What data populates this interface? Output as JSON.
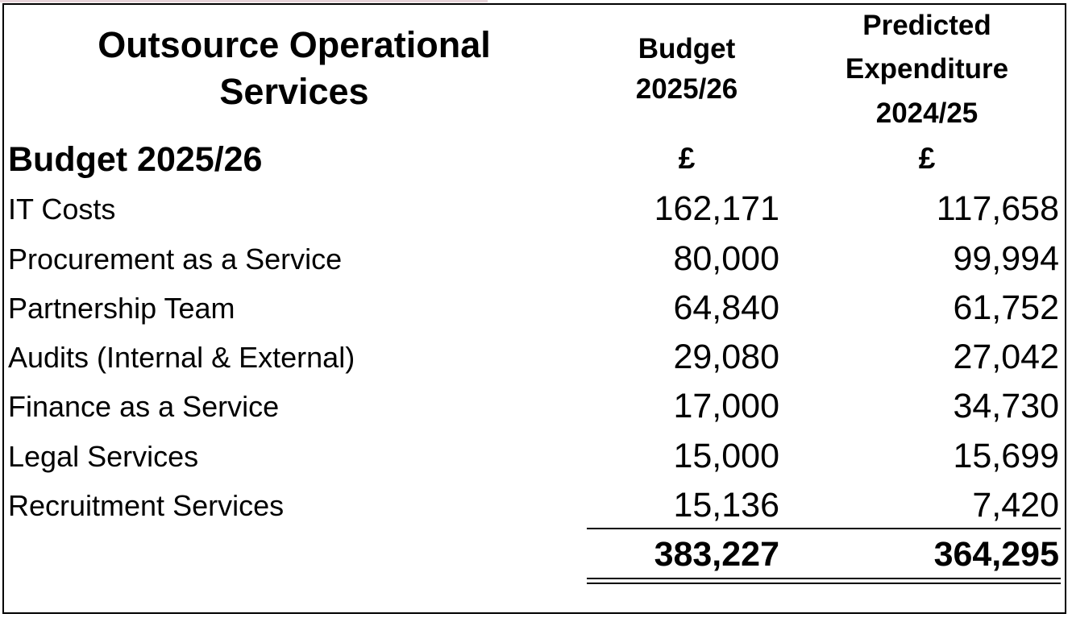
{
  "title_lines": [
    "Outsource Operational",
    "Services"
  ],
  "section_title": "Budget 2025/26",
  "columns": {
    "budget": {
      "lines": [
        "Budget",
        "2025/26"
      ],
      "currency": "£"
    },
    "predicted": {
      "lines": [
        "Predicted",
        "Expenditure",
        "2024/25"
      ],
      "currency": "£"
    }
  },
  "rows": [
    {
      "label": "IT Costs",
      "budget": "162,171",
      "predicted": "117,658"
    },
    {
      "label": "Procurement as a Service",
      "budget": "80,000",
      "predicted": "99,994"
    },
    {
      "label": "Partnership Team",
      "budget": "64,840",
      "predicted": "61,752"
    },
    {
      "label": "Audits (Internal & External)",
      "budget": "29,080",
      "predicted": "27,042"
    },
    {
      "label": "Finance as a Service",
      "budget": "17,000",
      "predicted": "34,730"
    },
    {
      "label": "Legal Services",
      "budget": "15,000",
      "predicted": "15,699"
    },
    {
      "label": "Recruitment Services",
      "budget": "15,136",
      "predicted": "7,420"
    }
  ],
  "totals": {
    "budget": "383,227",
    "predicted": "364,295"
  }
}
